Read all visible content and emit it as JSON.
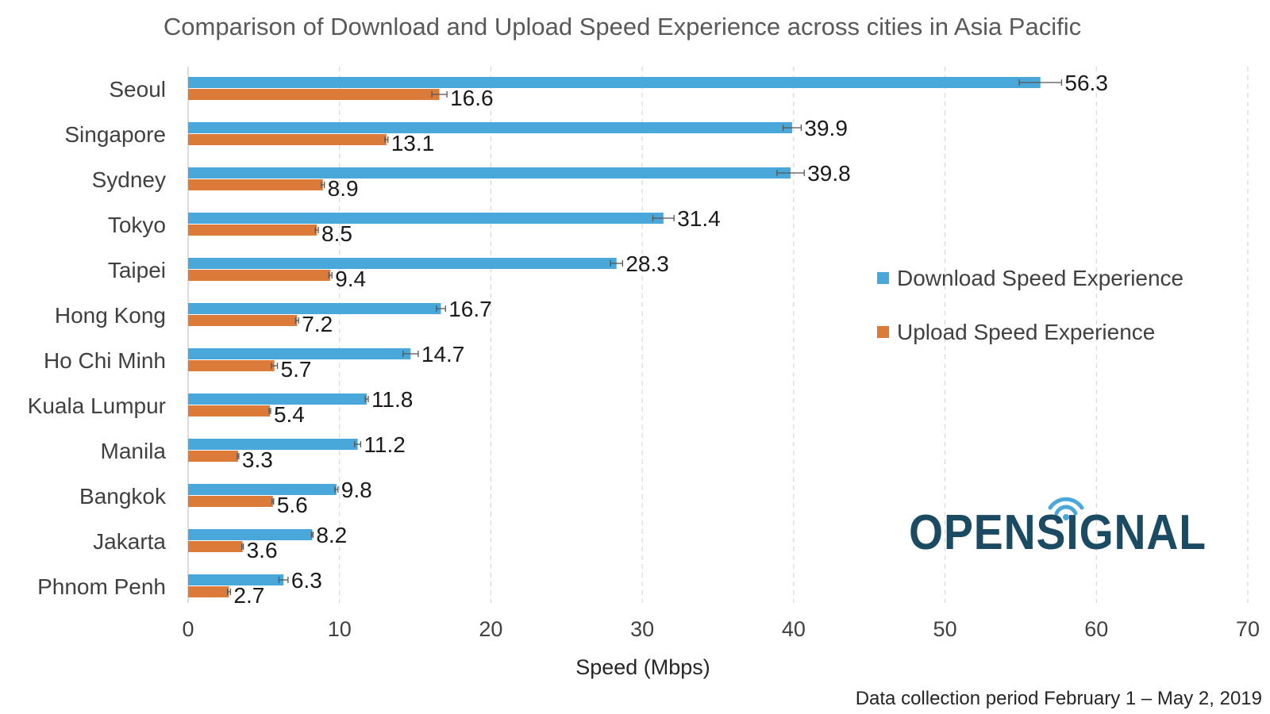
{
  "chart_data": {
    "type": "bar",
    "orientation": "horizontal",
    "title": "Comparison of Download and Upload Speed Experience across cities in Asia Pacific",
    "xlabel": "Speed (Mbps)",
    "ylabel": "",
    "xlim": [
      0,
      70
    ],
    "xticks": [
      0,
      10,
      20,
      30,
      40,
      50,
      60,
      70
    ],
    "grid": "vertical dashed",
    "legend_position": "right",
    "categories": [
      "Seoul",
      "Singapore",
      "Sydney",
      "Tokyo",
      "Taipei",
      "Hong Kong",
      "Ho Chi Minh",
      "Kuala Lumpur",
      "Manila",
      "Bangkok",
      "Jakarta",
      "Phnom Penh"
    ],
    "series": [
      {
        "name": "Download Speed Experience",
        "color": "#4aa7da",
        "values": [
          56.3,
          39.9,
          39.8,
          31.4,
          28.3,
          16.7,
          14.7,
          11.8,
          11.2,
          9.8,
          8.2,
          6.3
        ],
        "error": [
          1.4,
          0.6,
          0.9,
          0.7,
          0.4,
          0.3,
          0.5,
          0.1,
          0.2,
          0.1,
          0.05,
          0.3
        ]
      },
      {
        "name": "Upload Speed Experience",
        "color": "#dc7b39",
        "values": [
          16.6,
          13.1,
          8.9,
          8.5,
          9.4,
          7.2,
          5.7,
          5.4,
          3.3,
          5.6,
          3.6,
          2.7
        ],
        "error": [
          0.5,
          0.1,
          0.1,
          0.1,
          0.1,
          0.1,
          0.2,
          0.05,
          0.05,
          0.05,
          0.05,
          0.1
        ]
      }
    ],
    "footnote": "Data collection period February 1 – May 2, 2019",
    "logo_text": "OPENSIGNAL"
  }
}
